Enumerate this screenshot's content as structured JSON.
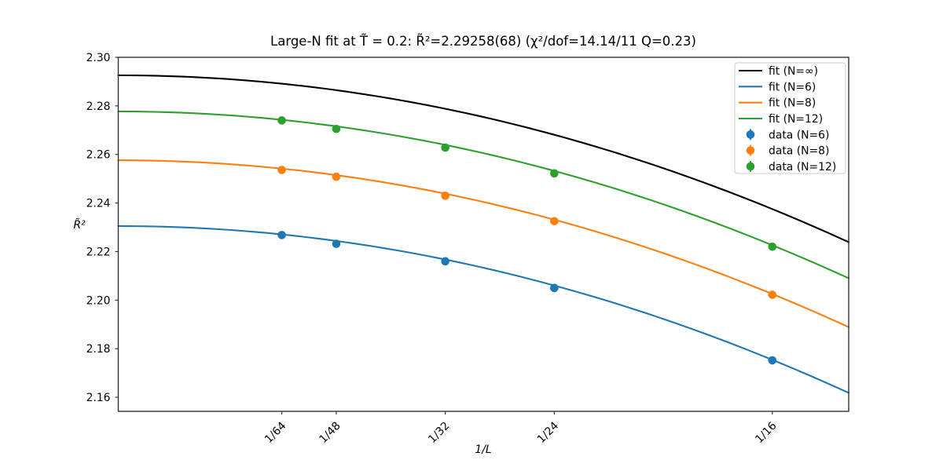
{
  "chart_data": {
    "type": "line",
    "title": "Large-N fit at T̃ = 0.2: R̃²=2.29258(68) (χ²/dof=14.14/11 Q=0.23)",
    "xlabel": "1/L",
    "ylabel": "R̃²",
    "xlim": [
      0,
      0.0698
    ],
    "ylim": [
      2.1542,
      2.3
    ],
    "grid": false,
    "legend_position": "upper right",
    "x_tick_values": [
      0.015625,
      0.0208333,
      0.03125,
      0.0416667,
      0.0625
    ],
    "x_tick_labels": [
      "1/64",
      "1/48",
      "1/32",
      "1/24",
      "1/16"
    ],
    "y_tick_values": [
      2.16,
      2.18,
      2.2,
      2.22,
      2.24,
      2.26,
      2.28,
      2.3
    ],
    "y_tick_labels": [
      "2.16",
      "2.18",
      "2.20",
      "2.22",
      "2.24",
      "2.26",
      "2.28",
      "2.30"
    ],
    "fit_model": "R2(1/L) = intercept - curvature*(1/L)^2",
    "fit_series": [
      {
        "label": "fit (N=∞)",
        "color": "#000000",
        "intercept": 2.29258,
        "curvature": 14.1
      },
      {
        "label": "fit (N=6)",
        "color": "#1f77b4",
        "intercept": 2.2305,
        "curvature": 14.1
      },
      {
        "label": "fit (N=8)",
        "color": "#ff7f0e",
        "intercept": 2.2576,
        "curvature": 14.1
      },
      {
        "label": "fit (N=12)",
        "color": "#2ca02c",
        "intercept": 2.2777,
        "curvature": 14.1
      }
    ],
    "data_series": [
      {
        "label": "data (N=6)",
        "color": "#1f77b4",
        "x": [
          0.015625,
          0.0208333,
          0.03125,
          0.0416667,
          0.0625
        ],
        "y": [
          2.2268,
          2.2232,
          2.216,
          2.205,
          2.1752
        ],
        "yerr": 0.001
      },
      {
        "label": "data (N=8)",
        "color": "#ff7f0e",
        "x": [
          0.015625,
          0.0208333,
          0.03125,
          0.0416667,
          0.0625
        ],
        "y": [
          2.2536,
          2.2508,
          2.243,
          2.2325,
          2.2022
        ],
        "yerr": 0.001
      },
      {
        "label": "data (N=12)",
        "color": "#2ca02c",
        "x": [
          0.015625,
          0.0208333,
          0.03125,
          0.0416667,
          0.0625
        ],
        "y": [
          2.274,
          2.2705,
          2.2628,
          2.2522,
          2.222
        ],
        "yerr": 0.001
      }
    ]
  }
}
